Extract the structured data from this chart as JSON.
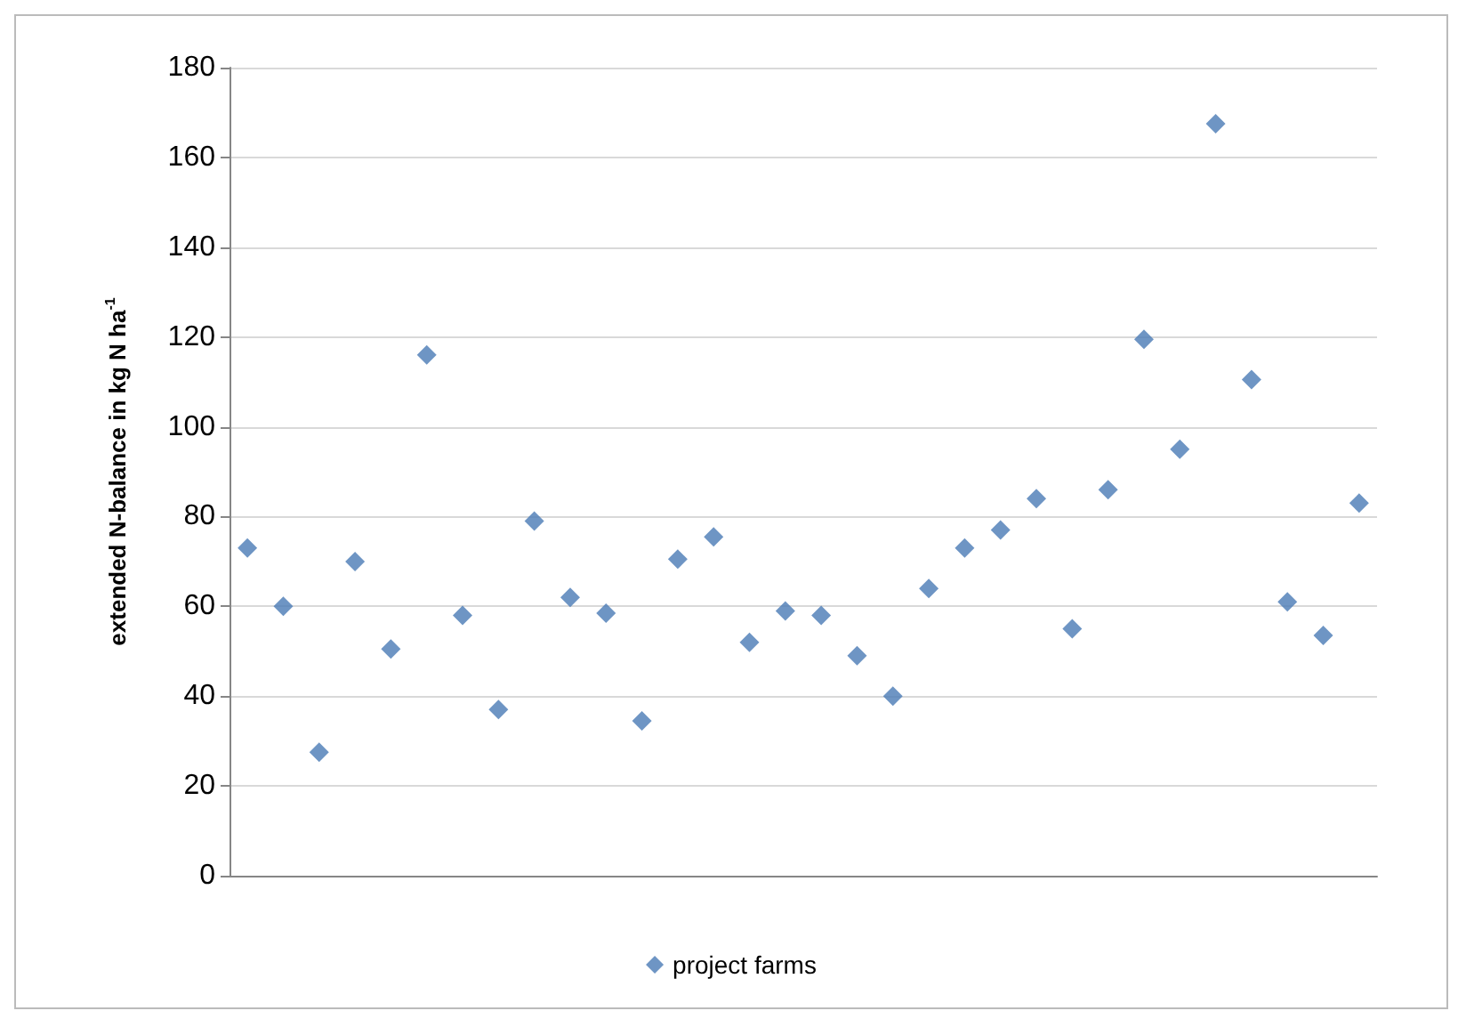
{
  "chart_data": {
    "type": "scatter",
    "ylabel": "extended N-balance in kg N ha$^{-1}$",
    "categories": [
      null,
      null,
      null,
      null,
      null,
      null,
      null,
      null,
      null,
      null,
      null,
      null,
      null,
      null,
      null,
      null,
      null,
      null,
      null,
      null,
      null,
      null,
      null,
      null,
      null,
      null,
      null,
      null,
      null,
      null,
      null,
      null
    ],
    "series": [
      {
        "name": "project farms",
        "color": "#4a7ab5",
        "values": [
          73,
          60,
          27.5,
          70,
          50.5,
          116,
          58,
          37,
          79,
          62,
          58.5,
          34.5,
          70.5,
          75.5,
          52,
          59,
          58,
          49,
          40,
          64,
          73,
          77,
          84,
          55,
          86,
          119.5,
          95,
          167.5,
          110.5,
          61,
          53.5,
          83
        ]
      }
    ],
    "ylim": [
      0,
      180
    ],
    "yticks": [
      0,
      20,
      40,
      60,
      80,
      100,
      120,
      140,
      160,
      180
    ],
    "grid": "y",
    "legend": "bottom",
    "marker": "diamond"
  }
}
